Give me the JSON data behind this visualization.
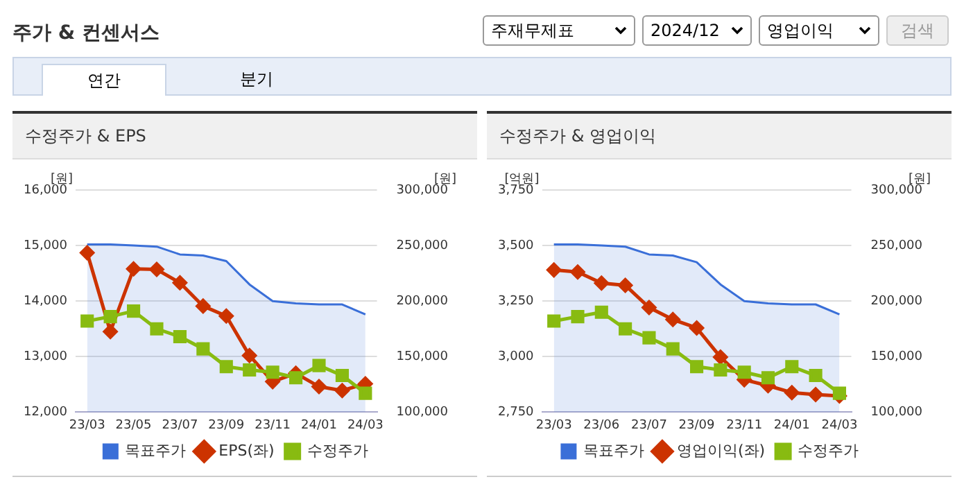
{
  "chart_data": [
    {
      "type": "other",
      "title": "주가 & 컨센서스",
      "annotations": [
        "주재무제표",
        "2024/12",
        "영업이익",
        "검색",
        "연간",
        "분기"
      ]
    },
    {
      "type": "line",
      "title": "수정주가 & EPS",
      "ylabel": "[원]",
      "y2label": "[원]",
      "categories": [
        "23/03",
        null,
        "23/05",
        null,
        "23/07",
        null,
        "23/09",
        null,
        "23/11",
        null,
        "24/01",
        null,
        "24/03"
      ],
      "series": [
        {
          "name": "목표주가",
          "type": "area",
          "axis": "y2",
          "color": "#3a6fd8",
          "marker": "none",
          "values": [
            251000,
            251000,
            250000,
            249000,
            242000,
            241000,
            236000,
            215000,
            200000,
            198000,
            197000,
            197000,
            188000
          ]
        },
        {
          "name": "EPS(좌)",
          "type": "line",
          "color": "#cc3300",
          "marker": "diamond",
          "values": [
            14870,
            13450,
            14580,
            14570,
            14330,
            13910,
            13730,
            13020,
            12550,
            12700,
            12460,
            12390,
            12510
          ]
        },
        {
          "name": "수정주가",
          "type": "line",
          "axis": "y2",
          "color": "#88bb11",
          "marker": "square",
          "values": [
            182000,
            186000,
            191000,
            175000,
            168000,
            157000,
            141000,
            138000,
            136000,
            131000,
            142000,
            133000,
            117000
          ]
        }
      ],
      "ylim": [
        12000,
        16000
      ],
      "yticks": [
        {
          "value": 12000,
          "label": "12,000"
        },
        {
          "value": 13000,
          "label": "13,000"
        },
        {
          "value": 14000,
          "label": "14,000"
        },
        {
          "value": 15000,
          "label": "15,000"
        },
        {
          "value": 16000,
          "label": "16,000"
        }
      ],
      "y2lim": [
        100000,
        300000
      ],
      "y2ticks": [
        {
          "value": 100000,
          "label": "100,000"
        },
        {
          "value": 150000,
          "label": "150,000"
        },
        {
          "value": 200000,
          "label": "200,000"
        },
        {
          "value": 250000,
          "label": "250,000"
        },
        {
          "value": 300000,
          "label": "300,000"
        }
      ],
      "grid": "y",
      "legend": "bottom"
    },
    {
      "type": "line",
      "title": "수정주가 & 영업이익",
      "ylabel": "[억원]",
      "y2label": "[원]",
      "categories": [
        "23/03",
        null,
        "23/06",
        null,
        "23/07",
        null,
        "23/09",
        null,
        "23/11",
        null,
        "24/01",
        null,
        "24/03"
      ],
      "series": [
        {
          "name": "목표주가",
          "type": "area",
          "axis": "y2",
          "color": "#3a6fd8",
          "marker": "none",
          "values": [
            251000,
            251000,
            250000,
            249000,
            242000,
            241000,
            235000,
            215000,
            200000,
            198000,
            197000,
            197000,
            188000
          ]
        },
        {
          "name": "영업이익(좌)",
          "type": "line",
          "color": "#cc3300",
          "marker": "diamond",
          "values": [
            3390,
            3381,
            3331,
            3321,
            3221,
            3167,
            3129,
            2998,
            2896,
            2869,
            2838,
            2829,
            2823
          ]
        },
        {
          "name": "수정주가",
          "type": "line",
          "axis": "y2",
          "color": "#88bb11",
          "marker": "square",
          "values": [
            182000,
            186000,
            190000,
            175000,
            167000,
            157000,
            141000,
            138000,
            136000,
            131000,
            141000,
            133000,
            117000
          ]
        }
      ],
      "ylim": [
        2750,
        3750
      ],
      "yticks": [
        {
          "value": 2750,
          "label": "2,750"
        },
        {
          "value": 3000,
          "label": "3,000"
        },
        {
          "value": 3250,
          "label": "3,250"
        },
        {
          "value": 3500,
          "label": "3,500"
        },
        {
          "value": 3750,
          "label": "3,750"
        }
      ],
      "y2lim": [
        100000,
        300000
      ],
      "y2ticks": [
        {
          "value": 100000,
          "label": "100,000"
        },
        {
          "value": 150000,
          "label": "150,000"
        },
        {
          "value": 200000,
          "label": "200,000"
        },
        {
          "value": 250000,
          "label": "250,000"
        },
        {
          "value": 300000,
          "label": "300,000"
        }
      ],
      "grid": "y",
      "legend": "bottom"
    }
  ]
}
